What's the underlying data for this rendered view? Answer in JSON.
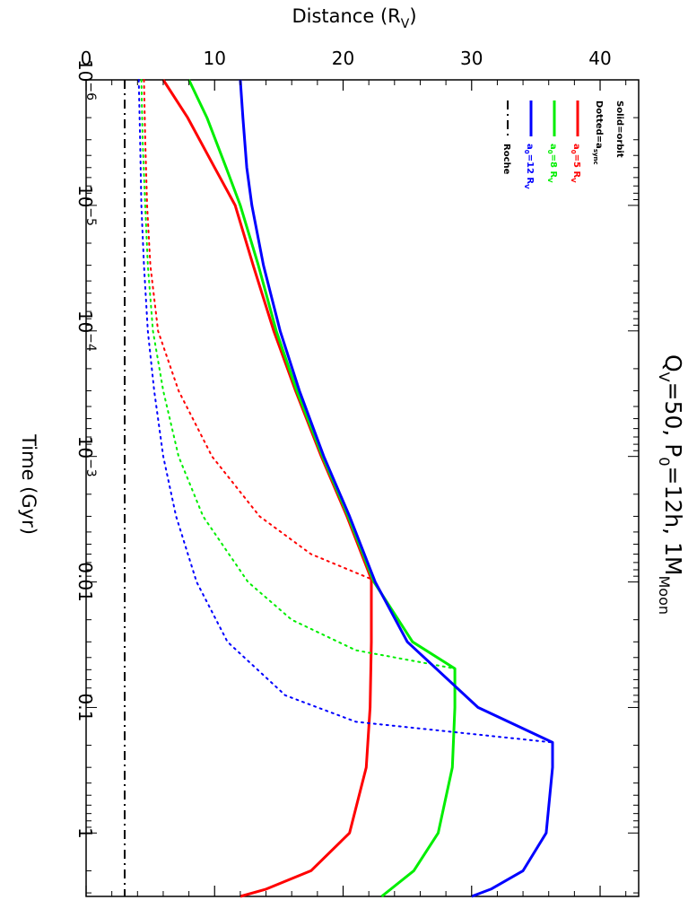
{
  "chart_data": {
    "type": "line",
    "title": "Q",
    "title_parts": {
      "q": "Q",
      "q_sub": "V",
      "q_val": "=50, P",
      "p_sub": "0",
      "p_val": "=12h, 1M",
      "m_sub": "Moon"
    },
    "xlabel": "Time (Gyr)",
    "xscale": "log",
    "xlim": [
      1e-06,
      3.2
    ],
    "ylabel_parts": {
      "main": "Distance (R",
      "sub": "V",
      "end": ")"
    },
    "ylim": [
      0,
      43
    ],
    "x_ticks": [
      {
        "value": 1e-06,
        "base": "10",
        "exp": "−6"
      },
      {
        "value": 1e-05,
        "base": "10",
        "exp": "−5"
      },
      {
        "value": 0.0001,
        "base": "10",
        "exp": "−4"
      },
      {
        "value": 0.001,
        "base": "10",
        "exp": "−3"
      },
      {
        "value": 0.01,
        "base": "0.01",
        "exp": ""
      },
      {
        "value": 0.1,
        "base": "0.1",
        "exp": ""
      },
      {
        "value": 1,
        "base": "1",
        "exp": ""
      }
    ],
    "y_ticks": [
      {
        "value": 0,
        "label": "0"
      },
      {
        "value": 10,
        "label": "10"
      },
      {
        "value": 20,
        "label": "20"
      },
      {
        "value": 30,
        "label": "30"
      },
      {
        "value": 40,
        "label": "40"
      }
    ],
    "legend_position": "top-right",
    "legend": {
      "header1": "Solid=orbit",
      "header2": {
        "main": "Dotted=a",
        "sub": "sync"
      },
      "entries": [
        {
          "pre": "a",
          "sub": "0",
          "mid": "=5 R",
          "sub2": "V",
          "color": "#ff0000",
          "style": "solid"
        },
        {
          "pre": "a",
          "sub": "0",
          "mid": "=8 R",
          "sub2": "V",
          "color": "#00ee00",
          "style": "solid"
        },
        {
          "pre": "a",
          "sub": "0",
          "mid": "=12 R",
          "sub2": "V",
          "color": "#0000ff",
          "style": "solid"
        },
        {
          "pre": "Roche",
          "sub": "",
          "mid": "",
          "sub2": "",
          "color": "#000000",
          "style": "dashdot"
        }
      ]
    },
    "series": [
      {
        "color": "#ff0000",
        "style": "solid",
        "kind": "orbit",
        "points": [
          [
            1e-06,
            6.0
          ],
          [
            2e-06,
            7.9
          ],
          [
            5e-06,
            10.0
          ],
          [
            1e-05,
            11.6
          ],
          [
            3e-05,
            13.0
          ],
          [
            0.0001,
            14.6
          ],
          [
            0.0003,
            16.3
          ],
          [
            0.001,
            18.3
          ],
          [
            0.003,
            20.3
          ],
          [
            0.0095,
            22.2
          ],
          [
            0.03,
            22.2
          ],
          [
            0.1,
            22.1
          ],
          [
            0.3,
            21.8
          ],
          [
            1,
            20.5
          ],
          [
            2,
            17.5
          ],
          [
            2.8,
            14.0
          ],
          [
            3.2,
            12.0
          ]
        ]
      },
      {
        "color": "#ff0000",
        "style": "dotted",
        "kind": "sync",
        "points": [
          [
            1e-06,
            4.5
          ],
          [
            3e-06,
            4.6
          ],
          [
            1e-05,
            4.75
          ],
          [
            3e-05,
            5.0
          ],
          [
            0.0001,
            5.6
          ],
          [
            0.0003,
            7.2
          ],
          [
            0.001,
            9.8
          ],
          [
            0.003,
            13.5
          ],
          [
            0.006,
            17.5
          ],
          [
            0.0095,
            22.2
          ]
        ]
      },
      {
        "color": "#00ee00",
        "style": "solid",
        "kind": "orbit",
        "points": [
          [
            1e-06,
            8.0
          ],
          [
            2e-06,
            9.4
          ],
          [
            5e-06,
            10.9
          ],
          [
            1e-05,
            12.0
          ],
          [
            3e-05,
            13.4
          ],
          [
            0.0001,
            14.8
          ],
          [
            0.0003,
            16.4
          ],
          [
            0.001,
            18.4
          ],
          [
            0.003,
            20.4
          ],
          [
            0.01,
            22.4
          ],
          [
            0.03,
            25.4
          ],
          [
            0.049,
            28.7
          ],
          [
            0.1,
            28.7
          ],
          [
            0.3,
            28.5
          ],
          [
            1,
            27.4
          ],
          [
            2,
            25.5
          ],
          [
            3.2,
            23.0
          ]
        ]
      },
      {
        "color": "#00ee00",
        "style": "dotted",
        "kind": "sync",
        "points": [
          [
            1e-06,
            4.3
          ],
          [
            3e-06,
            4.4
          ],
          [
            1e-05,
            4.6
          ],
          [
            3e-05,
            4.8
          ],
          [
            0.0001,
            5.2
          ],
          [
            0.0003,
            6.0
          ],
          [
            0.001,
            7.2
          ],
          [
            0.003,
            9.1
          ],
          [
            0.01,
            12.6
          ],
          [
            0.02,
            16.0
          ],
          [
            0.035,
            21.0
          ],
          [
            0.049,
            28.7
          ]
        ]
      },
      {
        "color": "#0000ff",
        "style": "solid",
        "kind": "orbit",
        "points": [
          [
            1e-06,
            12.0
          ],
          [
            2e-06,
            12.2
          ],
          [
            5e-06,
            12.5
          ],
          [
            1e-05,
            12.9
          ],
          [
            3e-05,
            13.8
          ],
          [
            0.0001,
            15.1
          ],
          [
            0.0003,
            16.6
          ],
          [
            0.001,
            18.5
          ],
          [
            0.003,
            20.5
          ],
          [
            0.01,
            22.5
          ],
          [
            0.03,
            25.0
          ],
          [
            0.1,
            30.5
          ],
          [
            0.19,
            36.3
          ],
          [
            0.3,
            36.3
          ],
          [
            1,
            35.8
          ],
          [
            2,
            34.0
          ],
          [
            2.8,
            31.5
          ],
          [
            3.2,
            30.0
          ]
        ]
      },
      {
        "color": "#0000ff",
        "style": "dotted",
        "kind": "sync",
        "points": [
          [
            1e-06,
            4.1
          ],
          [
            3e-06,
            4.2
          ],
          [
            1e-05,
            4.3
          ],
          [
            3e-05,
            4.5
          ],
          [
            0.0001,
            4.8
          ],
          [
            0.0003,
            5.3
          ],
          [
            0.001,
            6.0
          ],
          [
            0.003,
            7.0
          ],
          [
            0.01,
            8.6
          ],
          [
            0.03,
            11.0
          ],
          [
            0.08,
            15.5
          ],
          [
            0.13,
            21.0
          ],
          [
            0.19,
            36.3
          ]
        ]
      },
      {
        "color": "#000000",
        "style": "dashdot",
        "kind": "roche",
        "points": [
          [
            1e-06,
            3.0
          ],
          [
            3.2,
            3.0
          ]
        ]
      }
    ]
  }
}
